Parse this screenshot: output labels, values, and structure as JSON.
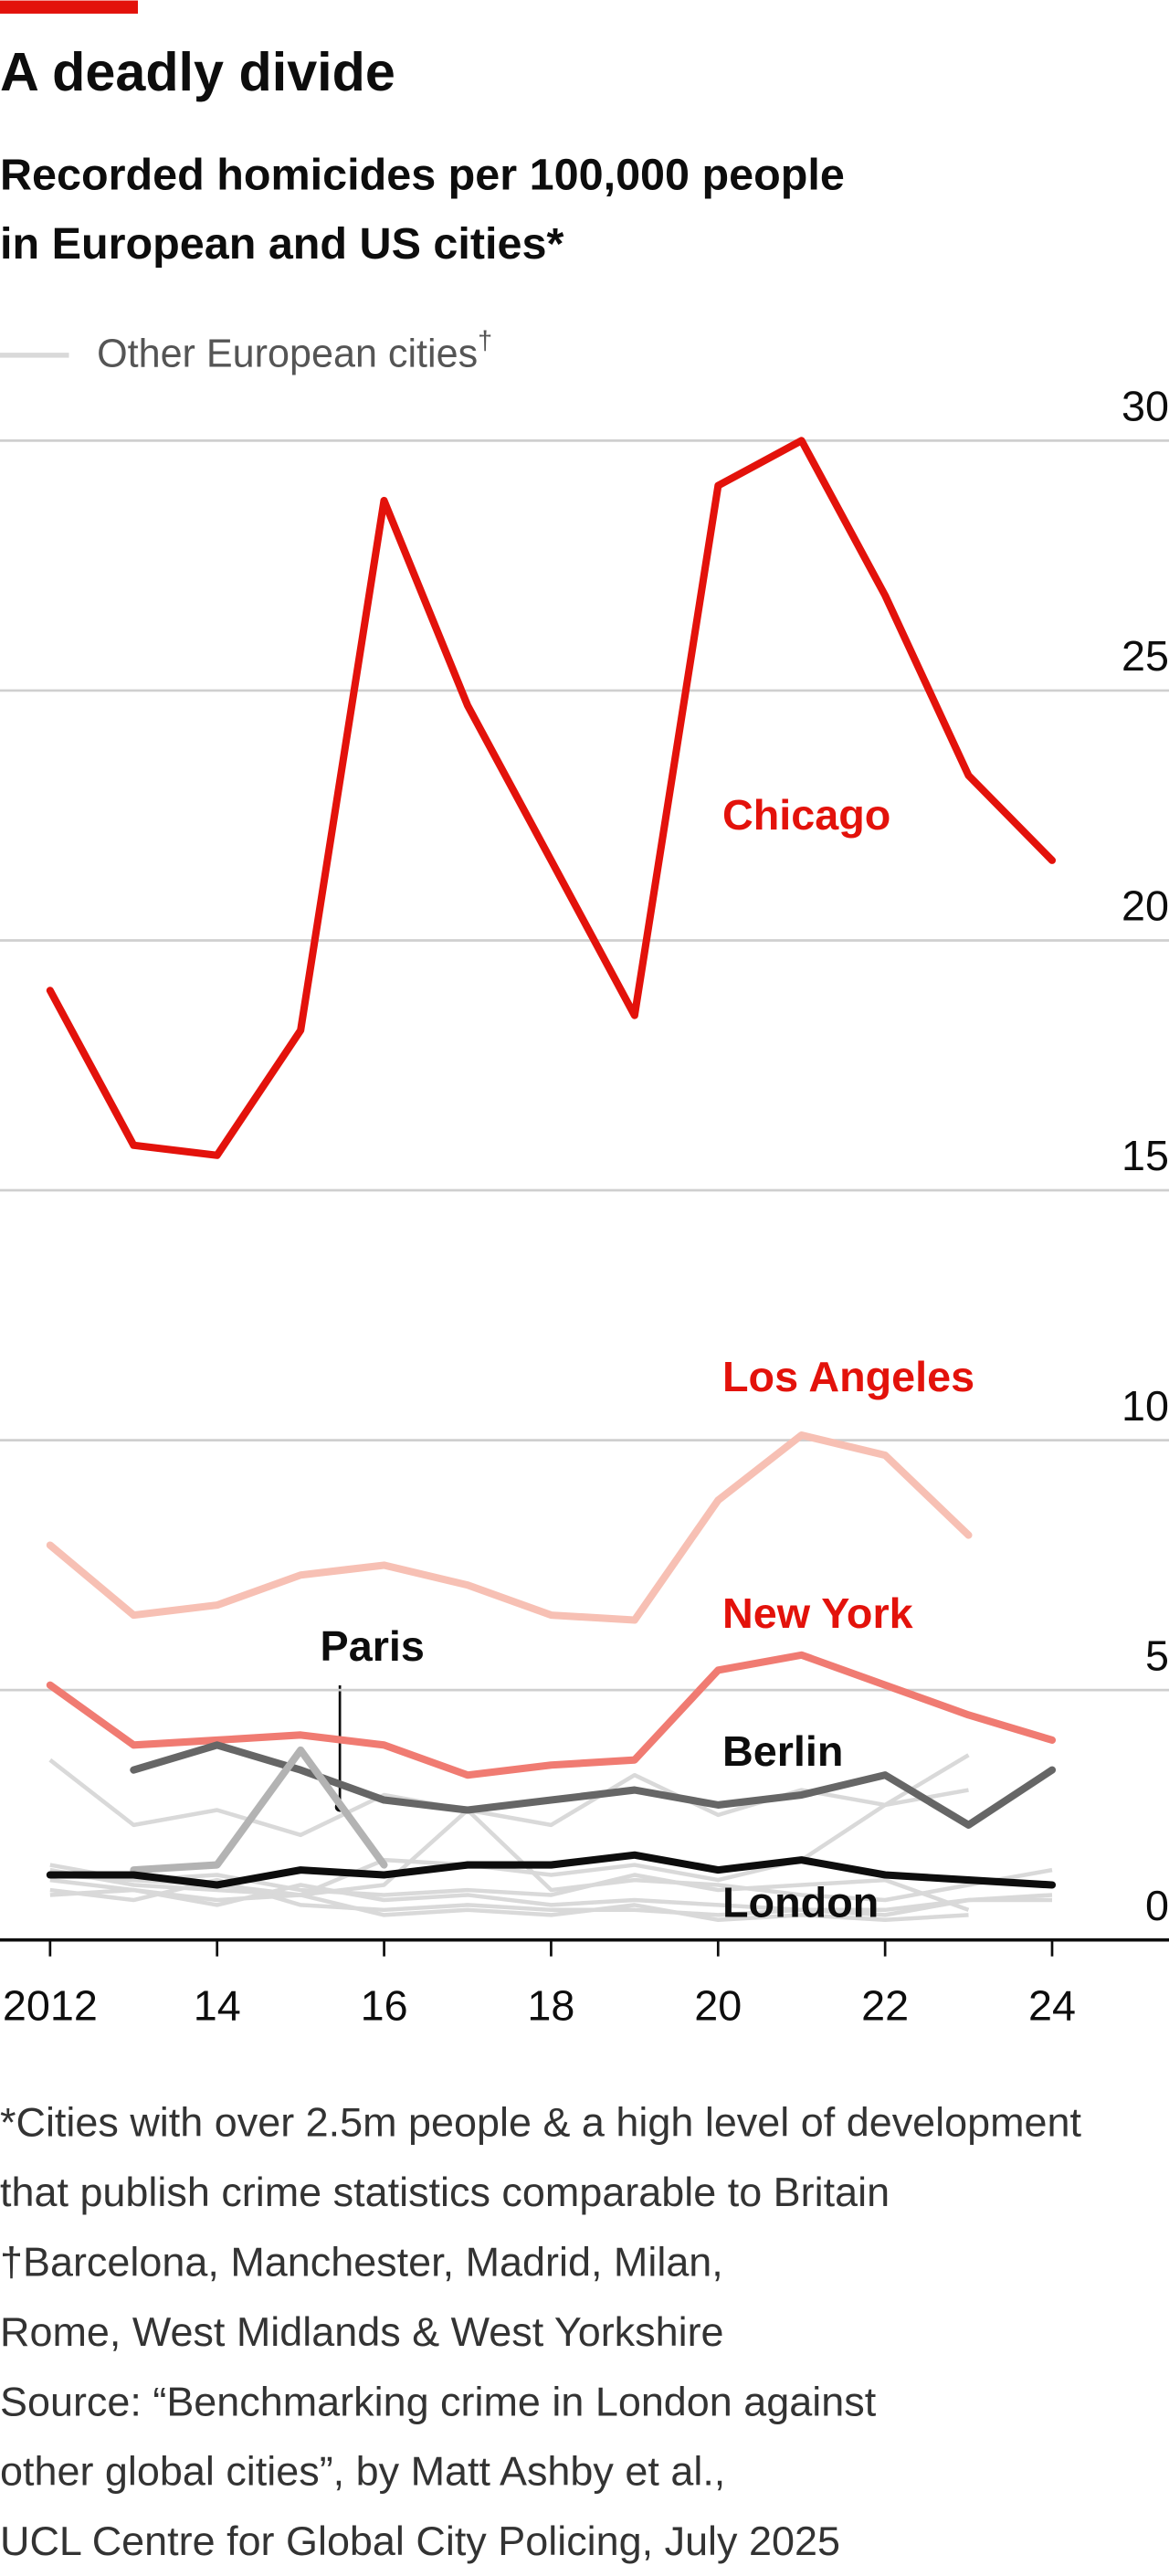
{
  "chart_data": {
    "type": "line",
    "title": "A deadly divide",
    "subtitle": [
      "Recorded homicides per 100,000 people",
      "in European and US cities*"
    ],
    "x": [
      2012,
      2013,
      2014,
      2015,
      2016,
      2017,
      2018,
      2019,
      2020,
      2021,
      2022,
      2023,
      2024
    ],
    "xlim": [
      2011.4,
      2025.4
    ],
    "xticks": [
      2012,
      {
        "value": 2014,
        "label": "14"
      },
      {
        "value": 2016,
        "label": "16"
      },
      {
        "value": 2018,
        "label": "18"
      },
      {
        "value": 2020,
        "label": "20"
      },
      {
        "value": 2022,
        "label": "22"
      },
      {
        "value": 2024,
        "label": "24"
      }
    ],
    "ylim": [
      0,
      30
    ],
    "yticks": [
      0,
      5,
      10,
      15,
      20,
      25,
      30
    ],
    "grid": true,
    "background_series": {
      "name": "Other European cities",
      "name_mark": "†",
      "color": "#d9d9d9",
      "lines": [
        [
          3.6,
          2.3,
          2.6,
          2.1,
          2.9,
          2.6,
          2.3,
          3.3,
          2.5,
          3.0,
          2.7,
          3.7,
          null
        ],
        [
          1.5,
          1.2,
          1.3,
          1.0,
          0.9,
          1.0,
          0.9,
          1.3,
          1.0,
          1.1,
          1.2,
          0.6,
          null
        ],
        [
          1.2,
          1.0,
          0.8,
          0.9,
          0.5,
          0.6,
          0.5,
          0.7,
          0.4,
          0.5,
          0.4,
          0.5,
          null
        ],
        [
          1.0,
          0.8,
          1.2,
          0.7,
          0.6,
          0.7,
          0.6,
          0.6,
          0.5,
          0.6,
          0.6,
          0.8,
          0.9
        ],
        [
          1.4,
          1.1,
          1.0,
          0.9,
          1.6,
          1.5,
          1.3,
          1.5,
          1.2,
          1.6,
          2.7,
          3.0,
          null
        ],
        [
          1.3,
          1.2,
          1.1,
          0.9,
          1.1,
          2.6,
          1.0,
          1.2,
          1.1,
          0.9,
          0.8,
          1.1,
          1.4
        ],
        [
          0.9,
          1.0,
          0.7,
          1.1,
          0.8,
          0.9,
          0.7,
          0.8,
          0.7,
          0.6,
          0.5,
          0.8,
          0.8
        ]
      ]
    },
    "series": [
      {
        "name": "Chicago",
        "color": "#e3120b",
        "label_color": "#e3120b",
        "values": [
          19.0,
          15.9,
          15.7,
          18.2,
          28.8,
          24.7,
          21.6,
          18.5,
          29.1,
          30.0,
          26.9,
          23.3,
          21.6
        ]
      },
      {
        "name": "Los Angeles",
        "color": "#f7c0b4",
        "label_color": "#e3120b",
        "values": [
          7.9,
          6.5,
          6.7,
          7.3,
          7.5,
          7.1,
          6.5,
          6.4,
          8.8,
          10.1,
          9.7,
          8.1,
          null
        ]
      },
      {
        "name": "New York",
        "color": "#f07b72",
        "label_color": "#e3120b",
        "values": [
          5.1,
          3.9,
          4.0,
          4.1,
          3.9,
          3.3,
          3.5,
          3.6,
          5.4,
          5.7,
          5.1,
          4.5,
          4.0
        ]
      },
      {
        "name": "Berlin",
        "color": "#666666",
        "label_color": "#0d0d0d",
        "values": [
          null,
          3.4,
          3.9,
          3.4,
          2.8,
          2.6,
          2.8,
          3.0,
          2.7,
          2.9,
          3.3,
          2.3,
          3.4
        ]
      },
      {
        "name": "Paris",
        "color": "#b3b3b3",
        "label_color": "#0d0d0d",
        "values": [
          null,
          1.4,
          1.5,
          3.8,
          1.5,
          null,
          null,
          null,
          null,
          null,
          null,
          null,
          null
        ]
      },
      {
        "name": "London",
        "color": "#0d0d0d",
        "label_color": "#0d0d0d",
        "values": [
          1.3,
          1.3,
          1.1,
          1.4,
          1.3,
          1.5,
          1.5,
          1.7,
          1.4,
          1.6,
          1.3,
          1.2,
          1.1
        ]
      }
    ],
    "footnotes": [
      "*Cities with over 2.5m people & a high level of development",
      "that publish crime statistics comparable to Britain",
      "†Barcelona, Manchester, Madrid, Milan,",
      "Rome, West Midlands & West Yorkshire",
      "Source: “Benchmarking crime in London against",
      "other global cities”, by Matt Ashby et al.,",
      "UCL Centre for Global City Policing, July 2025"
    ]
  }
}
